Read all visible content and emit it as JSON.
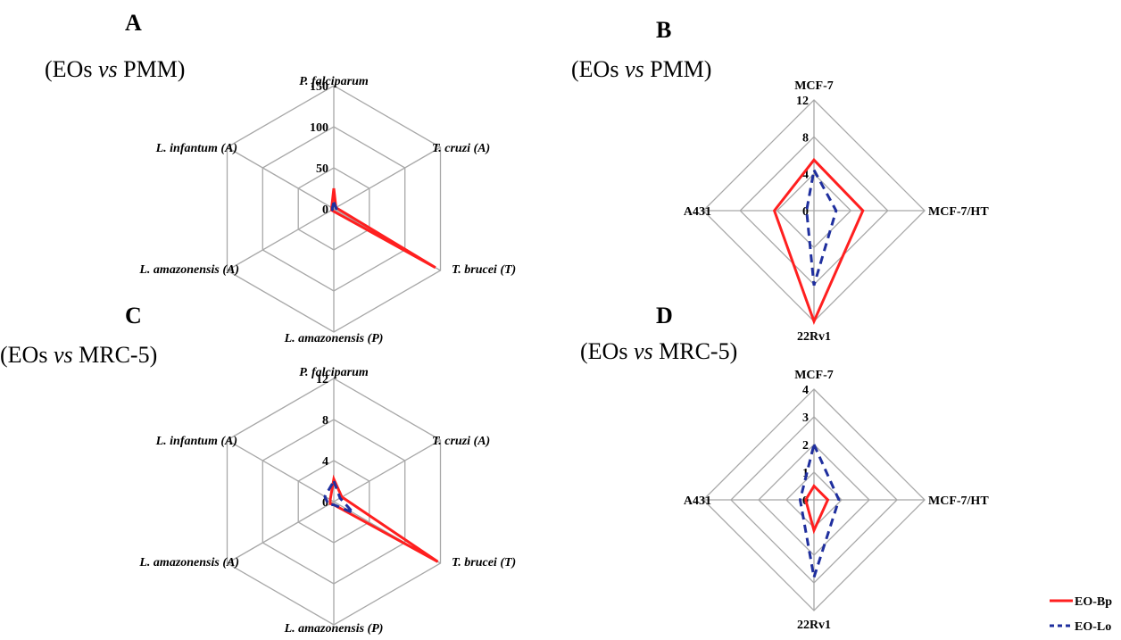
{
  "legend": [
    {
      "name": "EO-Bp",
      "color": "#ff1f1f",
      "style": "solid"
    },
    {
      "name": "EO-Lo",
      "color": "#1f2f9e",
      "style": "dashed"
    }
  ],
  "chart_data": [
    {
      "panel": "A",
      "type": "radar",
      "subtitle": "(EOs vs PMM)",
      "axes": [
        "P. falciparum",
        "T. cruzi (A)",
        "T. brucei (T)",
        "L. amazonensis (P)",
        "L. amazonensis (A)",
        "L. infantum (A)"
      ],
      "axis_italic": true,
      "ticks": [
        "0",
        "50",
        "100",
        "150"
      ],
      "range": [
        0,
        150
      ],
      "series": [
        {
          "name": "EO-Bp",
          "values": [
            25,
            3,
            143,
            3,
            3,
            3
          ]
        },
        {
          "name": "EO-Lo",
          "values": [
            8,
            3,
            5,
            2,
            2,
            2
          ]
        }
      ]
    },
    {
      "panel": "B",
      "type": "radar",
      "subtitle": "(EOs vs PMM)",
      "axes": [
        "MCF-7",
        "MCF-7/HT",
        "22Rv1",
        "A431"
      ],
      "axis_italic": false,
      "ticks": [
        "0",
        "4",
        "8",
        "12"
      ],
      "range": [
        0,
        12
      ],
      "series": [
        {
          "name": "EO-Bp",
          "values": [
            5.5,
            5.3,
            12,
            4.3
          ]
        },
        {
          "name": "EO-Lo",
          "values": [
            4.4,
            2.4,
            8.1,
            0.8
          ]
        }
      ]
    },
    {
      "panel": "C",
      "type": "radar",
      "subtitle": "(EOs vs MRC-5)",
      "axes": [
        "P. falciparum",
        "T. cruzi (A)",
        "T. brucei (T)",
        "L. amazonensis (P)",
        "L. amazonensis (A)",
        "L. infantum (A)"
      ],
      "axis_italic": true,
      "ticks": [
        "0",
        "4",
        "8",
        "12"
      ],
      "range": [
        0,
        12
      ],
      "series": [
        {
          "name": "EO-Bp",
          "values": [
            2.2,
            0.9,
            11.7,
            0.3,
            0.4,
            0.4
          ]
        },
        {
          "name": "EO-Lo",
          "values": [
            2.0,
            0.7,
            2.2,
            0.3,
            0.6,
            1.0
          ]
        }
      ]
    },
    {
      "panel": "D",
      "type": "radar",
      "subtitle": "(EOs vs MRC-5)",
      "axes": [
        "MCF-7",
        "MCF-7/HT",
        "22Rv1",
        "A431"
      ],
      "axis_italic": false,
      "ticks": [
        "0",
        "1",
        "2",
        "3",
        "4"
      ],
      "range": [
        0,
        4
      ],
      "series": [
        {
          "name": "EO-Bp",
          "values": [
            0.5,
            0.5,
            1.1,
            0.3
          ]
        },
        {
          "name": "EO-Lo",
          "values": [
            2.0,
            0.9,
            2.8,
            0.5
          ]
        }
      ]
    }
  ]
}
